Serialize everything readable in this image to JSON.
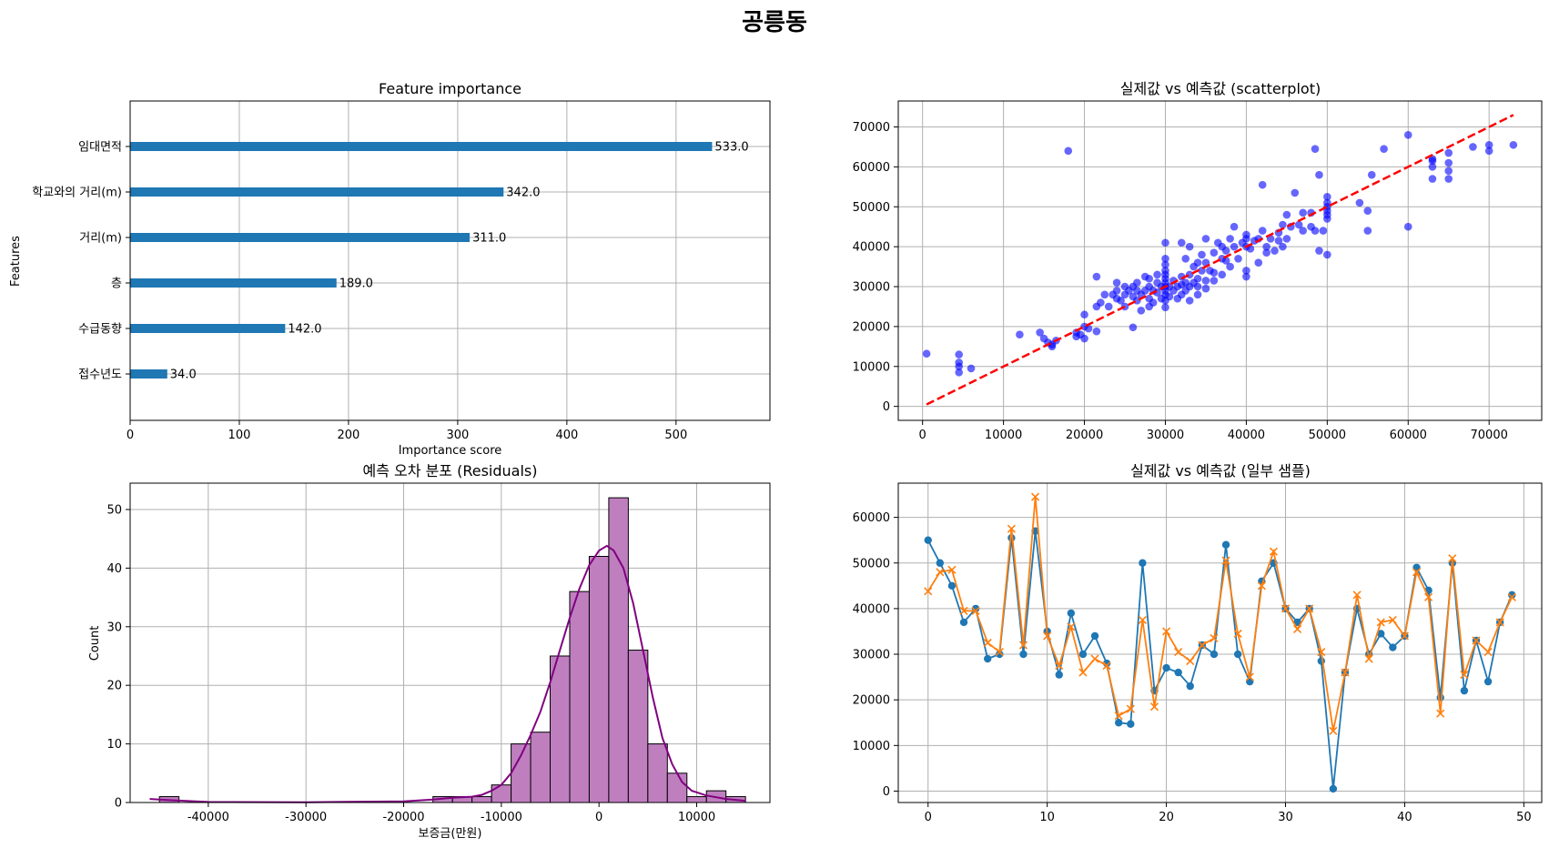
{
  "figure": {
    "suptitle": "공릉동"
  },
  "chart_data": [
    {
      "id": "importance",
      "type": "bar",
      "orientation": "horizontal",
      "title": "Feature importance",
      "xlabel": "Importance score",
      "ylabel": "Features",
      "categories": [
        "임대면적",
        "학교와의 거리(m)",
        "거리(m)",
        "층",
        "수급동향",
        "접수년도"
      ],
      "values": [
        533.0,
        342.0,
        311.0,
        189.0,
        142.0,
        34.0
      ],
      "value_labels": [
        "533.0",
        "342.0",
        "311.0",
        "189.0",
        "142.0",
        "34.0"
      ],
      "xlim": [
        0,
        586
      ],
      "xticks": [
        0,
        100,
        200,
        300,
        400,
        500
      ],
      "xtick_labels": [
        "0",
        "100",
        "200",
        "300",
        "400",
        "500"
      ],
      "grid": true,
      "color": "#1f77b4"
    },
    {
      "id": "scatter",
      "type": "scatter",
      "title": "실제값 vs 예측값 (scatterplot)",
      "xlim": [
        -3000,
        76500
      ],
      "ylim": [
        -3500,
        76500
      ],
      "xticks": [
        0,
        10000,
        20000,
        30000,
        40000,
        50000,
        60000,
        70000
      ],
      "xtick_labels": [
        "0",
        "10000",
        "20000",
        "30000",
        "40000",
        "50000",
        "60000",
        "70000"
      ],
      "yticks": [
        0,
        10000,
        20000,
        30000,
        40000,
        50000,
        60000,
        70000
      ],
      "ytick_labels": [
        "0",
        "10000",
        "20000",
        "30000",
        "40000",
        "50000",
        "60000",
        "70000"
      ],
      "grid": true,
      "point_color": "#0000ff",
      "line_color": "#ff0000",
      "reference_line": {
        "x": [
          500,
          73000
        ],
        "y": [
          500,
          73000
        ]
      },
      "points": [
        [
          500,
          13200
        ],
        [
          4500,
          10000
        ],
        [
          4500,
          11000
        ],
        [
          4500,
          13000
        ],
        [
          4500,
          8500
        ],
        [
          6000,
          9500
        ],
        [
          12000,
          18000
        ],
        [
          14500,
          18500
        ],
        [
          15000,
          17000
        ],
        [
          15500,
          16000
        ],
        [
          16000,
          15000
        ],
        [
          16000,
          15500
        ],
        [
          16500,
          16500
        ],
        [
          18000,
          64000
        ],
        [
          19000,
          17500
        ],
        [
          19000,
          18500
        ],
        [
          19500,
          18000
        ],
        [
          20000,
          17000
        ],
        [
          20000,
          20000
        ],
        [
          20000,
          23000
        ],
        [
          20500,
          19500
        ],
        [
          21500,
          18800
        ],
        [
          21500,
          25000
        ],
        [
          21500,
          32500
        ],
        [
          22000,
          26000
        ],
        [
          22500,
          28000
        ],
        [
          23000,
          25000
        ],
        [
          23500,
          28000
        ],
        [
          24000,
          27000
        ],
        [
          24000,
          29000
        ],
        [
          24000,
          31000
        ],
        [
          24500,
          26500
        ],
        [
          25000,
          25000
        ],
        [
          25000,
          28000
        ],
        [
          25000,
          30000
        ],
        [
          25500,
          29000
        ],
        [
          26000,
          19800
        ],
        [
          26000,
          27500
        ],
        [
          26000,
          30000
        ],
        [
          26500,
          26500
        ],
        [
          26500,
          29000
        ],
        [
          26500,
          31000
        ],
        [
          27000,
          24000
        ],
        [
          27000,
          28000
        ],
        [
          27500,
          29000
        ],
        [
          27500,
          32500
        ],
        [
          28000,
          25000
        ],
        [
          28000,
          27000
        ],
        [
          28000,
          30000
        ],
        [
          28000,
          32000
        ],
        [
          28500,
          26000
        ],
        [
          28500,
          29000
        ],
        [
          29000,
          28500
        ],
        [
          29000,
          31000
        ],
        [
          29000,
          33000
        ],
        [
          29500,
          30000
        ],
        [
          29500,
          27000
        ],
        [
          30000,
          24800
        ],
        [
          30000,
          26500
        ],
        [
          30000,
          28000
        ],
        [
          30000,
          29000
        ],
        [
          30000,
          30000
        ],
        [
          30000,
          31000
        ],
        [
          30000,
          32000
        ],
        [
          30000,
          33000
        ],
        [
          30000,
          34000
        ],
        [
          30000,
          35500
        ],
        [
          30000,
          37000
        ],
        [
          30000,
          41000
        ],
        [
          30500,
          27500
        ],
        [
          30500,
          30000
        ],
        [
          31000,
          29000
        ],
        [
          31000,
          31500
        ],
        [
          31500,
          27000
        ],
        [
          31500,
          30000
        ],
        [
          32000,
          28000
        ],
        [
          32000,
          30500
        ],
        [
          32000,
          32500
        ],
        [
          32000,
          41000
        ],
        [
          32500,
          29000
        ],
        [
          32500,
          31000
        ],
        [
          32500,
          37000
        ],
        [
          33000,
          26500
        ],
        [
          33000,
          30000
        ],
        [
          33000,
          33000
        ],
        [
          33000,
          40000
        ],
        [
          33500,
          31000
        ],
        [
          33500,
          35000
        ],
        [
          34000,
          28000
        ],
        [
          34000,
          30000
        ],
        [
          34000,
          32000
        ],
        [
          34000,
          36000
        ],
        [
          34500,
          34000
        ],
        [
          34500,
          38000
        ],
        [
          35000,
          29500
        ],
        [
          35000,
          31500
        ],
        [
          35000,
          36000
        ],
        [
          35000,
          42000
        ],
        [
          35500,
          34000
        ],
        [
          36000,
          31500
        ],
        [
          36000,
          33500
        ],
        [
          36000,
          38500
        ],
        [
          36500,
          41000
        ],
        [
          37000,
          37000
        ],
        [
          37000,
          40000
        ],
        [
          37000,
          33000
        ],
        [
          37500,
          36500
        ],
        [
          37500,
          39000
        ],
        [
          38000,
          35000
        ],
        [
          38000,
          42000
        ],
        [
          38500,
          40000
        ],
        [
          38500,
          45000
        ],
        [
          39000,
          37000
        ],
        [
          39500,
          41000
        ],
        [
          40000,
          32500
        ],
        [
          40000,
          34000
        ],
        [
          40000,
          40000
        ],
        [
          40000,
          42000
        ],
        [
          40000,
          43000
        ],
        [
          40500,
          39500
        ],
        [
          41000,
          41500
        ],
        [
          41500,
          36000
        ],
        [
          41500,
          42000
        ],
        [
          42000,
          44000
        ],
        [
          42000,
          55500
        ],
        [
          42500,
          40000
        ],
        [
          42500,
          38500
        ],
        [
          43000,
          42000
        ],
        [
          43500,
          39000
        ],
        [
          44000,
          41500
        ],
        [
          44000,
          43500
        ],
        [
          44500,
          40000
        ],
        [
          44500,
          45500
        ],
        [
          45000,
          48000
        ],
        [
          45000,
          42000
        ],
        [
          45500,
          45000
        ],
        [
          46000,
          53500
        ],
        [
          46500,
          45500
        ],
        [
          47000,
          44000
        ],
        [
          47000,
          48500
        ],
        [
          48000,
          45000
        ],
        [
          48000,
          48500
        ],
        [
          48500,
          44000
        ],
        [
          48500,
          64500
        ],
        [
          49000,
          39000
        ],
        [
          49000,
          58000
        ],
        [
          49500,
          44000
        ],
        [
          50000,
          38000
        ],
        [
          50000,
          47000
        ],
        [
          50000,
          48000
        ],
        [
          50000,
          49000
        ],
        [
          50000,
          50000
        ],
        [
          50000,
          51000
        ],
        [
          50000,
          52500
        ],
        [
          54000,
          51000
        ],
        [
          55000,
          44000
        ],
        [
          55000,
          49000
        ],
        [
          55500,
          58000
        ],
        [
          57000,
          64500
        ],
        [
          60000,
          45000
        ],
        [
          60000,
          68000
        ],
        [
          63000,
          57000
        ],
        [
          63000,
          60000
        ],
        [
          63000,
          61500
        ],
        [
          63000,
          62000
        ],
        [
          65000,
          57000
        ],
        [
          65000,
          59000
        ],
        [
          65000,
          61000
        ],
        [
          65000,
          63500
        ],
        [
          68000,
          65000
        ],
        [
          70000,
          64000
        ],
        [
          70000,
          65500
        ],
        [
          73000,
          65500
        ]
      ]
    },
    {
      "id": "residuals",
      "type": "histogram",
      "title": "예측 오차 분포 (Residuals)",
      "xlabel": "보증금(만원)",
      "ylabel": "Count",
      "xlim": [
        -48000,
        17500
      ],
      "ylim": [
        0,
        54.5
      ],
      "xticks": [
        -40000,
        -30000,
        -20000,
        -10000,
        0,
        10000
      ],
      "xtick_labels": [
        "-40000",
        "-30000",
        "-20000",
        "-10000",
        "0",
        "10000"
      ],
      "yticks": [
        0,
        10,
        20,
        30,
        40,
        50
      ],
      "ytick_labels": [
        "0",
        "10",
        "20",
        "30",
        "40",
        "50"
      ],
      "grid": true,
      "bin_start": -45000,
      "bin_width": 2000,
      "counts": [
        1,
        0,
        0,
        0,
        0,
        0,
        0,
        0,
        0,
        0,
        0,
        0,
        0,
        0,
        1,
        1,
        1,
        3,
        10,
        12,
        25,
        36,
        42,
        52,
        26,
        10,
        5,
        1,
        2,
        1
      ],
      "bar_color": "#bf7fbf",
      "edge_color": "#000000",
      "kde_color": "#800080",
      "kde": [
        [
          -46000,
          0.6
        ],
        [
          -44000,
          0.4
        ],
        [
          -40000,
          0.1
        ],
        [
          -30000,
          0.05
        ],
        [
          -20000,
          0.2
        ],
        [
          -17000,
          0.5
        ],
        [
          -15000,
          0.8
        ],
        [
          -13000,
          1.0
        ],
        [
          -12000,
          1.3
        ],
        [
          -11000,
          2.0
        ],
        [
          -10000,
          3.0
        ],
        [
          -9000,
          5.0
        ],
        [
          -8000,
          8.0
        ],
        [
          -7000,
          11.5
        ],
        [
          -6000,
          15.5
        ],
        [
          -5000,
          20.5
        ],
        [
          -4000,
          26.0
        ],
        [
          -3000,
          31.5
        ],
        [
          -2000,
          36.5
        ],
        [
          -1000,
          40.5
        ],
        [
          0,
          43.0
        ],
        [
          800,
          43.8
        ],
        [
          1500,
          43.0
        ],
        [
          2500,
          40.0
        ],
        [
          3500,
          34.0
        ],
        [
          4500,
          26.0
        ],
        [
          5500,
          18.0
        ],
        [
          6500,
          11.0
        ],
        [
          7500,
          6.5
        ],
        [
          8500,
          3.5
        ],
        [
          9500,
          2.0
        ],
        [
          11000,
          1.2
        ],
        [
          13000,
          0.6
        ],
        [
          15000,
          0.3
        ]
      ]
    },
    {
      "id": "samples",
      "type": "line",
      "title": "실제값 vs 예측값 (일부 샘플)",
      "xlim": [
        -2.5,
        51.5
      ],
      "ylim": [
        -2500,
        67500
      ],
      "xticks": [
        0,
        10,
        20,
        30,
        40,
        50
      ],
      "xtick_labels": [
        "0",
        "10",
        "20",
        "30",
        "40",
        "50"
      ],
      "yticks": [
        0,
        10000,
        20000,
        30000,
        40000,
        50000,
        60000
      ],
      "ytick_labels": [
        "0",
        "10000",
        "20000",
        "30000",
        "40000",
        "50000",
        "60000"
      ],
      "grid": true,
      "series": [
        {
          "marker": "circle",
          "color": "#1f77b4",
          "values": [
            55000,
            50000,
            45000,
            37000,
            40000,
            29000,
            30000,
            55500,
            30000,
            57000,
            35000,
            25500,
            39000,
            30000,
            34000,
            28000,
            15000,
            14700,
            50000,
            22000,
            27000,
            26000,
            23000,
            32000,
            30000,
            54000,
            30000,
            24000,
            46000,
            50000,
            40000,
            37000,
            40000,
            28500,
            500,
            26000,
            40000,
            30000,
            34500,
            31500,
            34000,
            49000,
            44000,
            20500,
            50000,
            22000,
            33000,
            24000,
            37000,
            43000
          ]
        },
        {
          "marker": "x",
          "color": "#ff7f0e",
          "values": [
            43800,
            48000,
            48500,
            39500,
            39500,
            32500,
            30500,
            57500,
            32000,
            64500,
            34000,
            27500,
            36000,
            26000,
            29000,
            27500,
            16500,
            18000,
            37500,
            18500,
            35000,
            30500,
            28500,
            32000,
            33500,
            50500,
            34500,
            25000,
            45000,
            52500,
            40000,
            35500,
            40000,
            30500,
            13200,
            26000,
            43000,
            29000,
            37000,
            37500,
            34000,
            48000,
            42500,
            17000,
            51000,
            25500,
            33000,
            30500,
            37000,
            42500
          ]
        }
      ]
    }
  ]
}
